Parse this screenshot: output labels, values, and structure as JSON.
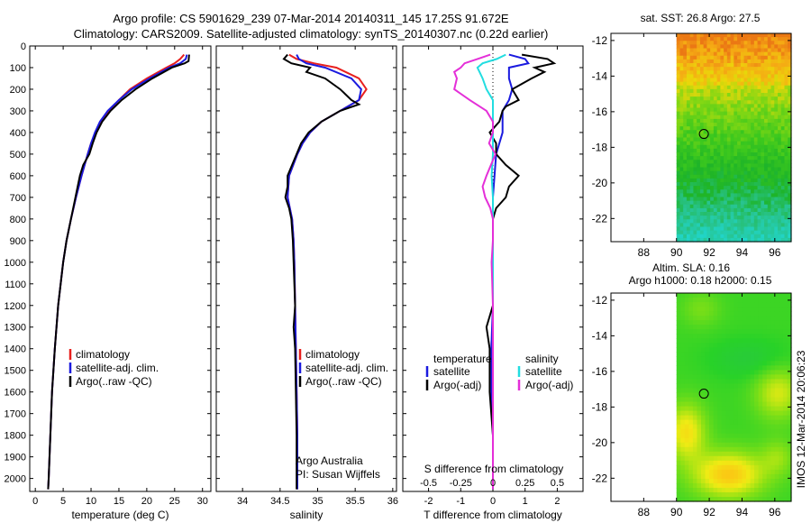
{
  "header": {
    "line1": "Argo profile: CS 5901629_239 07-Mar-2014 20140311_145 17.25S 91.672E",
    "line2": "Climatology: CARS2009. Satellite-adjusted climatology: synTS_20140307.nc (0.22d earlier)"
  },
  "side_label": "IMOS 12-Mar-2014 20:06:23",
  "depth_ticks": [
    0,
    100,
    200,
    300,
    400,
    500,
    600,
    700,
    800,
    900,
    1000,
    1100,
    1200,
    1300,
    1400,
    1500,
    1600,
    1700,
    1800,
    1900,
    2000
  ],
  "depth_range": [
    0,
    2060
  ],
  "colors": {
    "climatology": "#e8201e",
    "satellite": "#1a1adf",
    "argo": "#000000",
    "sat_diff": "#22dde0",
    "argo_diff": "#e42fd8"
  },
  "chart_data": [
    {
      "id": "temperature",
      "type": "line",
      "xlabel": "temperature (deg C)",
      "xlim": [
        -1,
        31.5
      ],
      "xticks": [
        0,
        5,
        10,
        15,
        20,
        25,
        30
      ],
      "legend": [
        "climatology",
        "satellite-adj. clim.",
        "Argo(..raw -QC)"
      ],
      "series": [
        {
          "name": "climatology",
          "color": "#e8201e",
          "depth": [
            40,
            60,
            80,
            100,
            150,
            200,
            250,
            300,
            350,
            400,
            450,
            500,
            600,
            700,
            800,
            900,
            1000,
            1200,
            1400,
            1600,
            1800,
            2000,
            2050
          ],
          "values": [
            26.7,
            26.0,
            25.0,
            23.5,
            20.0,
            17.0,
            15.0,
            13.2,
            11.8,
            10.8,
            10.0,
            9.4,
            8.3,
            7.3,
            6.4,
            5.6,
            5.0,
            4.1,
            3.5,
            3.0,
            2.7,
            2.4,
            2.3
          ]
        },
        {
          "name": "satellite-adj. clim.",
          "color": "#1a1adf",
          "depth": [
            40,
            60,
            80,
            100,
            150,
            200,
            250,
            300,
            350,
            400,
            450,
            500,
            600,
            700,
            800,
            900,
            1000,
            1200,
            1400,
            1600,
            1800,
            2000,
            2050
          ],
          "values": [
            27.2,
            27.0,
            26.0,
            24.0,
            20.5,
            17.3,
            15.0,
            13.0,
            11.6,
            10.7,
            10.0,
            9.4,
            8.3,
            7.3,
            6.4,
            5.6,
            5.0,
            4.1,
            3.5,
            3.0,
            2.7,
            2.4,
            2.3
          ]
        },
        {
          "name": "Argo(..raw -QC)",
          "color": "#000000",
          "depth": [
            40,
            70,
            80,
            100,
            150,
            200,
            250,
            300,
            350,
            400,
            450,
            500,
            550,
            600,
            700,
            800,
            900,
            1000,
            1200,
            1400,
            1600,
            1800,
            2000,
            2050
          ],
          "values": [
            27.6,
            27.5,
            26.8,
            24.5,
            21.0,
            18.0,
            15.5,
            13.5,
            12.0,
            11.0,
            10.3,
            9.7,
            8.6,
            8.0,
            7.2,
            6.4,
            5.6,
            5.0,
            4.1,
            3.5,
            3.0,
            2.7,
            2.4,
            2.3
          ]
        }
      ]
    },
    {
      "id": "salinity",
      "type": "line",
      "xlabel": "salinity",
      "xlim": [
        33.65,
        36.05
      ],
      "xticks": [
        34,
        34.5,
        35,
        35.5,
        36
      ],
      "legend": [
        "climatology",
        "satellite-adj. clim.",
        "Argo(..raw -QC)"
      ],
      "notes": [
        "Argo Australia",
        "PI: Susan Wijffels"
      ],
      "series": [
        {
          "name": "climatology",
          "color": "#e8201e",
          "depth": [
            40,
            60,
            80,
            100,
            150,
            200,
            250,
            300,
            350,
            400,
            450,
            500,
            600,
            700,
            800,
            900,
            1000,
            1200,
            1400,
            1600,
            1800,
            2000,
            2050
          ],
          "values": [
            34.62,
            34.72,
            34.95,
            35.25,
            35.55,
            35.65,
            35.55,
            35.3,
            35.05,
            34.9,
            34.8,
            34.73,
            34.62,
            34.6,
            34.66,
            34.68,
            34.69,
            34.7,
            34.71,
            34.72,
            34.73,
            34.73,
            34.73
          ]
        },
        {
          "name": "satellite-adj. clim.",
          "color": "#1a1adf",
          "depth": [
            40,
            60,
            80,
            100,
            150,
            200,
            250,
            300,
            350,
            400,
            450,
            500,
            600,
            700,
            800,
            900,
            1000,
            1200,
            1400,
            1600,
            1800,
            2000,
            2050
          ],
          "values": [
            34.72,
            34.75,
            34.85,
            35.1,
            35.45,
            35.58,
            35.55,
            35.3,
            35.05,
            34.9,
            34.8,
            34.73,
            34.62,
            34.6,
            34.66,
            34.68,
            34.69,
            34.7,
            34.71,
            34.72,
            34.73,
            34.73,
            34.73
          ]
        },
        {
          "name": "Argo(..raw -QC)",
          "color": "#000000",
          "depth": [
            40,
            60,
            80,
            100,
            120,
            150,
            200,
            250,
            270,
            300,
            350,
            400,
            450,
            500,
            600,
            650,
            700,
            750,
            800,
            900,
            1000,
            1100,
            1200,
            1300,
            1400,
            1600,
            1800,
            2000,
            2050
          ],
          "values": [
            34.6,
            34.55,
            34.65,
            34.9,
            34.85,
            35.1,
            35.3,
            35.45,
            35.55,
            35.3,
            35.05,
            34.88,
            34.78,
            34.72,
            34.6,
            34.6,
            34.57,
            34.62,
            34.65,
            34.67,
            34.68,
            34.69,
            34.7,
            34.68,
            34.7,
            34.71,
            34.72,
            34.72,
            34.72
          ]
        }
      ]
    },
    {
      "id": "difference",
      "type": "line",
      "xlabel": "T difference from climatology",
      "top_label": "S difference from climatology",
      "xlim": [
        -2.8,
        2.8
      ],
      "xticks": [
        -2,
        -1,
        0,
        1,
        2
      ],
      "top_ticks": [
        {
          "value": -0.5,
          "label": "-0.5"
        },
        {
          "value": -0.25,
          "label": "-0.25"
        },
        {
          "value": 0,
          "label": "0"
        },
        {
          "value": 0.25,
          "label": "0.25"
        },
        {
          "value": 0.5,
          "label": "0.5"
        }
      ],
      "s_scale": 4,
      "legend_left_title": "temperature",
      "legend_right_title": "salinity",
      "legend_left": [
        "satellite",
        "Argo(-adj)"
      ],
      "legend_right": [
        "satellite",
        "Argo(-adj)"
      ],
      "series": [
        {
          "name": "temperature satellite",
          "color": "#1a1adf",
          "depth": [
            40,
            60,
            80,
            100,
            150,
            200,
            250,
            300,
            350,
            400,
            500,
            600,
            700,
            800,
            1000,
            1200,
            1400,
            1600,
            1800,
            2000,
            2050
          ],
          "values": [
            0.5,
            1.0,
            1.1,
            0.5,
            0.5,
            0.6,
            0.5,
            0.3,
            0.3,
            0.3,
            0.1,
            0.05,
            0.0,
            0.0,
            0.0,
            0.0,
            -0.05,
            -0.05,
            0.0,
            0.0,
            0.0
          ]
        },
        {
          "name": "temperature Argo(-adj)",
          "color": "#000000",
          "depth": [
            40,
            60,
            80,
            100,
            120,
            150,
            200,
            250,
            280,
            300,
            350,
            400,
            450,
            500,
            550,
            600,
            650,
            700,
            750,
            800,
            1000,
            1200,
            1300,
            1400,
            1600,
            1800,
            2000,
            2050
          ],
          "values": [
            0.9,
            1.7,
            1.9,
            1.3,
            1.6,
            1.2,
            0.6,
            0.8,
            0.4,
            0.3,
            0.2,
            -0.1,
            0.1,
            0.1,
            0.4,
            0.8,
            0.5,
            0.4,
            0.1,
            0.0,
            0.0,
            0.0,
            -0.2,
            -0.1,
            -0.1,
            0.0,
            0.0,
            0.0
          ]
        },
        {
          "name": "salinity satellite",
          "color": "#22dde0",
          "depth": [
            40,
            60,
            80,
            100,
            150,
            200,
            250,
            300,
            350,
            400,
            500,
            600,
            700,
            800,
            1000,
            1200,
            1400,
            1600,
            1800,
            2000,
            2050
          ],
          "values": [
            0.1,
            0.03,
            -0.08,
            -0.12,
            -0.08,
            -0.05,
            0.0,
            0.0,
            0.0,
            0.0,
            0.0,
            -0.01,
            0.0,
            0.0,
            0.0,
            0.0,
            0.0,
            0.0,
            0.0,
            0.0,
            0.0
          ]
        },
        {
          "name": "salinity Argo(-adj)",
          "color": "#e42fd8",
          "depth": [
            40,
            60,
            80,
            100,
            120,
            150,
            200,
            250,
            300,
            350,
            400,
            450,
            500,
            600,
            650,
            700,
            750,
            800,
            900,
            1000,
            1200,
            1400,
            1600,
            1800,
            2000,
            2050
          ],
          "values": [
            -0.02,
            -0.12,
            -0.22,
            -0.25,
            -0.3,
            -0.28,
            -0.3,
            -0.18,
            -0.05,
            0.0,
            0.0,
            -0.03,
            0.02,
            -0.05,
            -0.08,
            -0.06,
            -0.02,
            0.0,
            0.0,
            -0.01,
            0.0,
            0.0,
            0.0,
            0.0,
            0.0,
            0.0
          ]
        }
      ]
    },
    {
      "id": "sst_map",
      "type": "heatmap",
      "title": "sat. SST: 26.8  Argo: 27.5",
      "xlim": [
        86,
        97
      ],
      "ylim": [
        -23.3,
        -11.6
      ],
      "xticks": [
        88,
        90,
        92,
        94,
        96
      ],
      "yticks": [
        -12,
        -14,
        -16,
        -18,
        -20,
        -22
      ],
      "data_lon_range": [
        90,
        97
      ],
      "argo_position": {
        "lon": 91.672,
        "lat": -17.25
      }
    },
    {
      "id": "sla_map",
      "type": "heatmap",
      "title_line1": "Altim. SLA: 0.16",
      "title_line2": "Argo h1000: 0.18  h2000: 0.15",
      "xlim": [
        86,
        97
      ],
      "ylim": [
        -23.3,
        -11.6
      ],
      "xticks": [
        88,
        90,
        92,
        94,
        96
      ],
      "yticks": [
        -12,
        -14,
        -16,
        -18,
        -20,
        -22
      ],
      "data_lon_range": [
        90,
        97
      ],
      "argo_position": {
        "lon": 91.672,
        "lat": -17.25
      }
    }
  ]
}
